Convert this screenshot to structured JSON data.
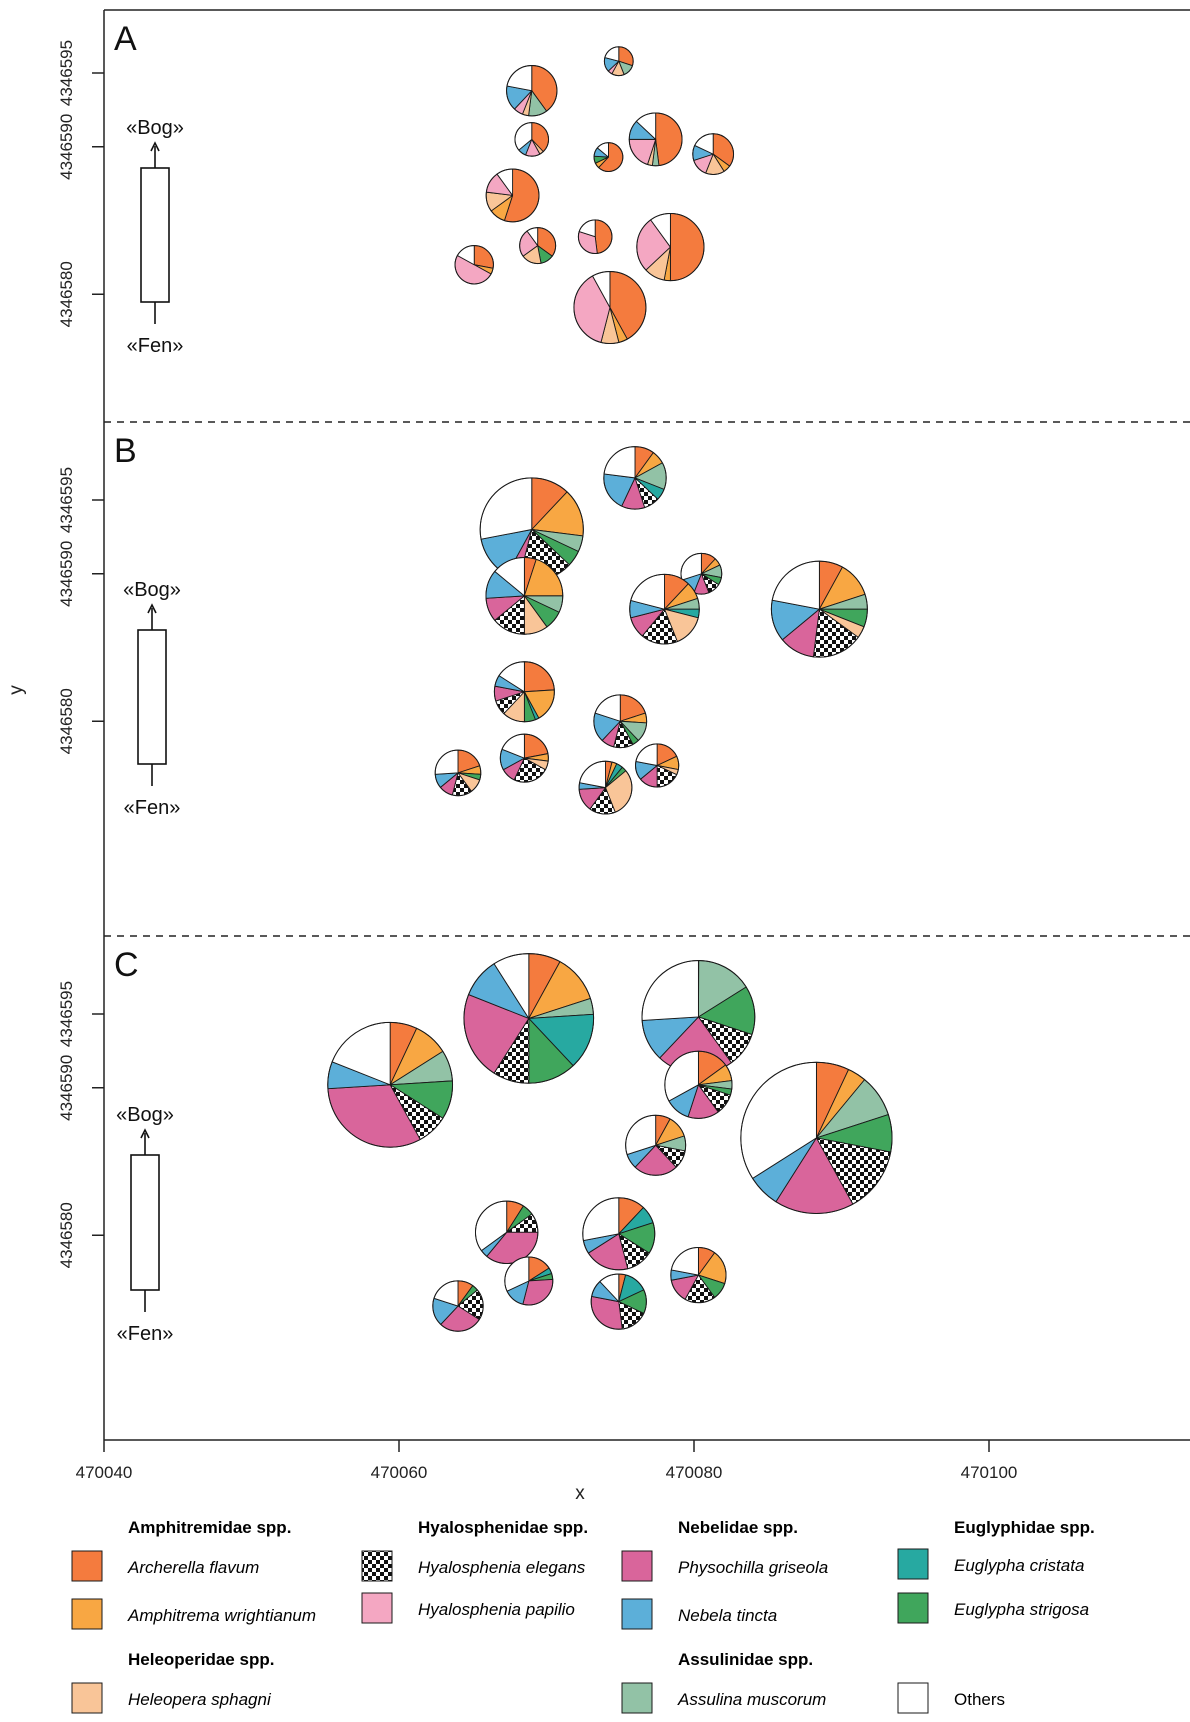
{
  "chart_data": {
    "type": "pie",
    "subtype": "spatial pie map (pie size proportional to abundance)",
    "xlabel": "x",
    "ylabel": "y",
    "xlim": [
      470040,
      470114
    ],
    "x_ticks": [
      470040,
      470060,
      470080,
      470100
    ],
    "y_ticks": [
      4346580,
      4346590,
      4346595
    ],
    "gradient": {
      "top": "«Bog»",
      "bottom": "«Fen»"
    },
    "taxa": [
      {
        "id": "af",
        "family": "Amphitremidae spp.",
        "name": "Archerella flavum",
        "color": "#F47B3E"
      },
      {
        "id": "aw",
        "family": "Amphitremidae spp.",
        "name": "Amphitrema wrightianum",
        "color": "#F8A743"
      },
      {
        "id": "hs",
        "family": "Heleoperidae spp.",
        "name": "Heleopera sphagni",
        "color": "#F9C598"
      },
      {
        "id": "he",
        "family": "Hyalosphenidae spp.",
        "name": "Hyalosphenia elegans",
        "color": "checker"
      },
      {
        "id": "hp",
        "family": "Hyalosphenidae spp.",
        "name": "Hyalosphenia papilio",
        "color": "#F4A7C2"
      },
      {
        "id": "pg",
        "family": "Nebelidae spp.",
        "name": "Physochilla griseola",
        "color": "#D9659B"
      },
      {
        "id": "nt",
        "family": "Nebelidae spp.",
        "name": "Nebela tincta",
        "color": "#5CAFD9"
      },
      {
        "id": "am",
        "family": "Assulinidae spp.",
        "name": "Assulina muscorum",
        "color": "#92C2A6"
      },
      {
        "id": "ec",
        "family": "Euglyphidae spp.",
        "name": "Euglypha cristata",
        "color": "#27A9A1"
      },
      {
        "id": "es",
        "family": "Euglyphidae spp.",
        "name": "Euglypha strigosa",
        "color": "#40A65C"
      },
      {
        "id": "ot",
        "family": "",
        "name": "Others",
        "color": "#FFFFFF"
      }
    ],
    "panels": [
      {
        "label": "A",
        "pies": [
          {
            "x": 470074.9,
            "y": 4346595.8,
            "size": 1.2,
            "values": {
              "af": 30,
              "am": 14,
              "hs": 14,
              "hp": 5,
              "nt": 16,
              "ot": 21
            }
          },
          {
            "x": 470069.0,
            "y": 4346593.8,
            "size": 2.1,
            "values": {
              "af": 40,
              "am": 12,
              "hs": 4,
              "hp": 6,
              "nt": 16,
              "ot": 22
            }
          },
          {
            "x": 470069.0,
            "y": 4346590.5,
            "size": 1.4,
            "values": {
              "af": 38,
              "hp": 14,
              "hs": 4,
              "nt": 8,
              "ot": 36
            }
          },
          {
            "x": 470077.4,
            "y": 4346590.5,
            "size": 2.2,
            "values": {
              "af": 48,
              "am": 4,
              "hs": 3,
              "hp": 20,
              "nt": 12,
              "ot": 13
            }
          },
          {
            "x": 470074.2,
            "y": 4346589.3,
            "size": 1.2,
            "values": {
              "af": 62,
              "es": 8,
              "aw": 6,
              "nt": 10,
              "ot": 14
            }
          },
          {
            "x": 470081.3,
            "y": 4346589.5,
            "size": 1.7,
            "values": {
              "af": 35,
              "aw": 6,
              "hs": 15,
              "hp": 14,
              "nt": 12,
              "ot": 18
            }
          },
          {
            "x": 470067.7,
            "y": 4346586.7,
            "size": 2.2,
            "values": {
              "af": 55,
              "aw": 10,
              "hs": 12,
              "hp": 13,
              "ot": 10
            }
          },
          {
            "x": 470073.3,
            "y": 4346583.9,
            "size": 1.4,
            "values": {
              "af": 48,
              "hp": 32,
              "ot": 20
            }
          },
          {
            "x": 470069.4,
            "y": 4346583.3,
            "size": 1.5,
            "values": {
              "es": 12,
              "af": 35,
              "hs": 18,
              "hp": 25,
              "ot": 10
            }
          },
          {
            "x": 470078.4,
            "y": 4346583.2,
            "size": 2.8,
            "values": {
              "af": 50,
              "aw": 3,
              "hs": 10,
              "hp": 27,
              "ot": 10
            }
          },
          {
            "x": 470065.1,
            "y": 4346582.0,
            "size": 1.6,
            "values": {
              "af": 28,
              "aw": 5,
              "hp": 50,
              "ot": 17
            }
          },
          {
            "x": 470074.3,
            "y": 4346579.1,
            "size": 3.0,
            "values": {
              "af": 42,
              "aw": 4,
              "hs": 8,
              "hp": 38,
              "ot": 8
            }
          }
        ]
      },
      {
        "label": "B",
        "pies": [
          {
            "x": 470076.0,
            "y": 4346596.5,
            "size": 2.6,
            "values": {
              "af": 10,
              "aw": 7,
              "am": 14,
              "ec": 6,
              "he": 8,
              "pg": 12,
              "nt": 20,
              "ot": 23
            }
          },
          {
            "x": 470069.0,
            "y": 4346593.0,
            "size": 4.3,
            "values": {
              "af": 12,
              "aw": 15,
              "am": 5,
              "es": 5,
              "he": 17,
              "pg": 4,
              "nt": 14,
              "ot": 28
            }
          },
          {
            "x": 470080.5,
            "y": 4346590.0,
            "size": 1.7,
            "values": {
              "af": 12,
              "aw": 6,
              "am": 10,
              "es": 6,
              "he": 10,
              "pg": 12,
              "nt": 14,
              "ot": 30
            }
          },
          {
            "x": 470068.5,
            "y": 4346588.5,
            "size": 3.2,
            "values": {
              "af": 5,
              "aw": 20,
              "am": 7,
              "es": 8,
              "hs": 10,
              "he": 14,
              "pg": 10,
              "nt": 12,
              "ot": 14
            }
          },
          {
            "x": 470088.5,
            "y": 4346587.6,
            "size": 4.0,
            "values": {
              "af": 8,
              "aw": 12,
              "am": 5,
              "es": 6,
              "hs": 4,
              "he": 17,
              "pg": 12,
              "nt": 14,
              "ot": 22
            }
          },
          {
            "x": 470078.0,
            "y": 4346587.6,
            "size": 2.9,
            "values": {
              "af": 12,
              "aw": 8,
              "am": 5,
              "ec": 4,
              "hs": 15,
              "he": 17,
              "pg": 10,
              "nt": 8,
              "ot": 21
            }
          },
          {
            "x": 470068.5,
            "y": 4346582.0,
            "size": 2.5,
            "values": {
              "af": 24,
              "aw": 18,
              "es": 6,
              "ec": 2,
              "hs": 12,
              "he": 8,
              "pg": 8,
              "nt": 6,
              "ot": 16
            }
          },
          {
            "x": 470075.0,
            "y": 4346580.0,
            "size": 2.2,
            "values": {
              "af": 20,
              "aw": 6,
              "am": 12,
              "es": 4,
              "he": 12,
              "pg": 8,
              "nt": 18,
              "ot": 20
            }
          },
          {
            "x": 470068.5,
            "y": 4346577.5,
            "size": 2.0,
            "values": {
              "af": 22,
              "aw": 5,
              "hs": 6,
              "he": 24,
              "pg": 10,
              "nt": 14,
              "ot": 19
            }
          },
          {
            "x": 470077.5,
            "y": 4346577.0,
            "size": 1.8,
            "values": {
              "af": 18,
              "aw": 10,
              "hs": 4,
              "he": 18,
              "pg": 14,
              "nt": 14,
              "ot": 22
            }
          },
          {
            "x": 470064.0,
            "y": 4346576.5,
            "size": 1.9,
            "values": {
              "af": 20,
              "aw": 6,
              "es": 4,
              "hs": 10,
              "he": 14,
              "pg": 10,
              "nt": 10,
              "ot": 26
            }
          },
          {
            "x": 470074.0,
            "y": 4346575.5,
            "size": 2.2,
            "values": {
              "af": 4,
              "aw": 3,
              "ec": 4,
              "es": 3,
              "hs": 30,
              "he": 16,
              "pg": 14,
              "nt": 4,
              "ot": 22
            }
          }
        ]
      },
      {
        "label": "C",
        "pies": [
          {
            "x": 470068.8,
            "y": 4346594.7,
            "size": 5.4,
            "values": {
              "af": 8,
              "aw": 12,
              "am": 4,
              "ec": 14,
              "es": 12,
              "he": 9,
              "pg": 22,
              "nt": 10,
              "ot": 9
            }
          },
          {
            "x": 470080.3,
            "y": 4346594.8,
            "size": 4.7,
            "values": {
              "af": 0.1,
              "am": 16,
              "es": 14,
              "he": 10,
              "pg": 22,
              "nt": 12,
              "ot": 26
            }
          },
          {
            "x": 470059.4,
            "y": 4346590.2,
            "size": 5.2,
            "values": {
              "af": 7,
              "aw": 9,
              "am": 8,
              "es": 10,
              "he": 8,
              "pg": 32,
              "nt": 7,
              "ot": 19
            }
          },
          {
            "x": 470080.3,
            "y": 4346590.2,
            "size": 2.8,
            "values": {
              "af": 15,
              "aw": 8,
              "es": 3,
              "am": 4,
              "he": 10,
              "pg": 15,
              "nt": 12,
              "ot": 33
            }
          },
          {
            "x": 470088.3,
            "y": 4346586.6,
            "size": 6.3,
            "values": {
              "af": 7,
              "aw": 4,
              "am": 9,
              "es": 8,
              "he": 14,
              "pg": 17,
              "nt": 7,
              "ot": 34
            }
          },
          {
            "x": 470077.4,
            "y": 4346586.1,
            "size": 2.5,
            "values": {
              "af": 8,
              "aw": 12,
              "am": 8,
              "he": 10,
              "pg": 24,
              "nt": 8,
              "ot": 30
            }
          },
          {
            "x": 470067.3,
            "y": 4346580.2,
            "size": 2.6,
            "values": {
              "af": 9,
              "es": 6,
              "he": 10,
              "pg": 36,
              "nt": 4,
              "ot": 35
            }
          },
          {
            "x": 470074.9,
            "y": 4346580.1,
            "size": 3.0,
            "values": {
              "af": 12,
              "ec": 8,
              "es": 14,
              "he": 12,
              "pg": 20,
              "nt": 6,
              "ot": 28
            }
          },
          {
            "x": 470068.8,
            "y": 4346576.9,
            "size": 2.0,
            "values": {
              "af": 16,
              "ec": 4,
              "es": 4,
              "pg": 30,
              "nt": 14,
              "ot": 32
            }
          },
          {
            "x": 470080.3,
            "y": 4346577.3,
            "size": 2.3,
            "values": {
              "af": 10,
              "aw": 20,
              "es": 10,
              "he": 18,
              "pg": 14,
              "nt": 6,
              "ot": 22
            }
          },
          {
            "x": 470064.0,
            "y": 4346575.2,
            "size": 2.1,
            "values": {
              "af": 10,
              "es": 4,
              "he": 20,
              "pg": 28,
              "nt": 18,
              "ot": 20
            }
          },
          {
            "x": 470074.9,
            "y": 4346575.5,
            "size": 2.3,
            "values": {
              "af": 4,
              "ec": 14,
              "es": 14,
              "he": 16,
              "pg": 30,
              "nt": 10,
              "ot": 12
            }
          }
        ]
      }
    ],
    "legend": {
      "placement": "bottom",
      "columns": [
        [
          {
            "type": "family",
            "text": "Amphitremidae spp."
          },
          {
            "type": "item",
            "taxon": "af",
            "text": "Archerella flavum"
          },
          {
            "type": "item",
            "taxon": "aw",
            "text": "Amphitrema wrightianum"
          },
          {
            "type": "family",
            "text": "Heleoperidae spp."
          },
          {
            "type": "item",
            "taxon": "hs",
            "text": "Heleopera sphagni"
          }
        ],
        [
          {
            "type": "family",
            "text": "Hyalosphenidae spp."
          },
          {
            "type": "item",
            "taxon": "he",
            "text": "Hyalosphenia elegans"
          },
          {
            "type": "item",
            "taxon": "hp",
            "text": "Hyalosphenia papilio"
          }
        ],
        [
          {
            "type": "family",
            "text": "Nebelidae spp."
          },
          {
            "type": "item",
            "taxon": "pg",
            "text": "Physochilla griseola"
          },
          {
            "type": "item",
            "taxon": "nt",
            "text": "Nebela tincta"
          },
          {
            "type": "family",
            "text": "Assulinidae spp."
          },
          {
            "type": "item",
            "taxon": "am",
            "text": "Assulina muscorum"
          }
        ],
        [
          {
            "type": "family",
            "text": "Euglyphidae spp."
          },
          {
            "type": "item",
            "taxon": "ec",
            "text": "Euglypha cristata"
          },
          {
            "type": "item",
            "taxon": "es",
            "text": "Euglypha strigosa"
          },
          {
            "type": "item",
            "taxon": "ot",
            "text": "Others",
            "plain": true
          }
        ]
      ]
    }
  }
}
